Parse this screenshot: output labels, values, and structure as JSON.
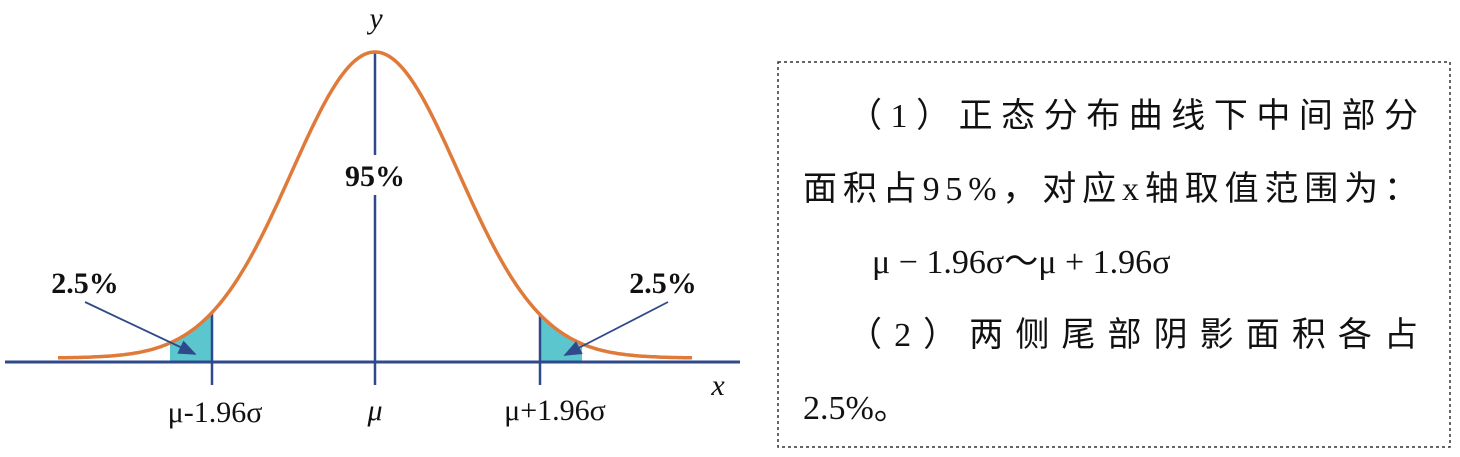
{
  "diagram": {
    "y_axis_label": "y",
    "x_axis_label": "x",
    "center_area_label": "95%",
    "left_tail_label": "2.5%",
    "right_tail_label": "2.5%",
    "ticks": [
      "μ-1.96σ",
      "μ",
      "μ+1.96σ"
    ]
  },
  "text_box": {
    "lines": [
      "（1）正态分布曲线下中间部分",
      "面积占95%，对应x轴取值范围为：",
      "μ − 1.96σ～μ + 1.96σ",
      "（2）两侧尾部阴影面积各占",
      "2.5%。"
    ]
  }
}
